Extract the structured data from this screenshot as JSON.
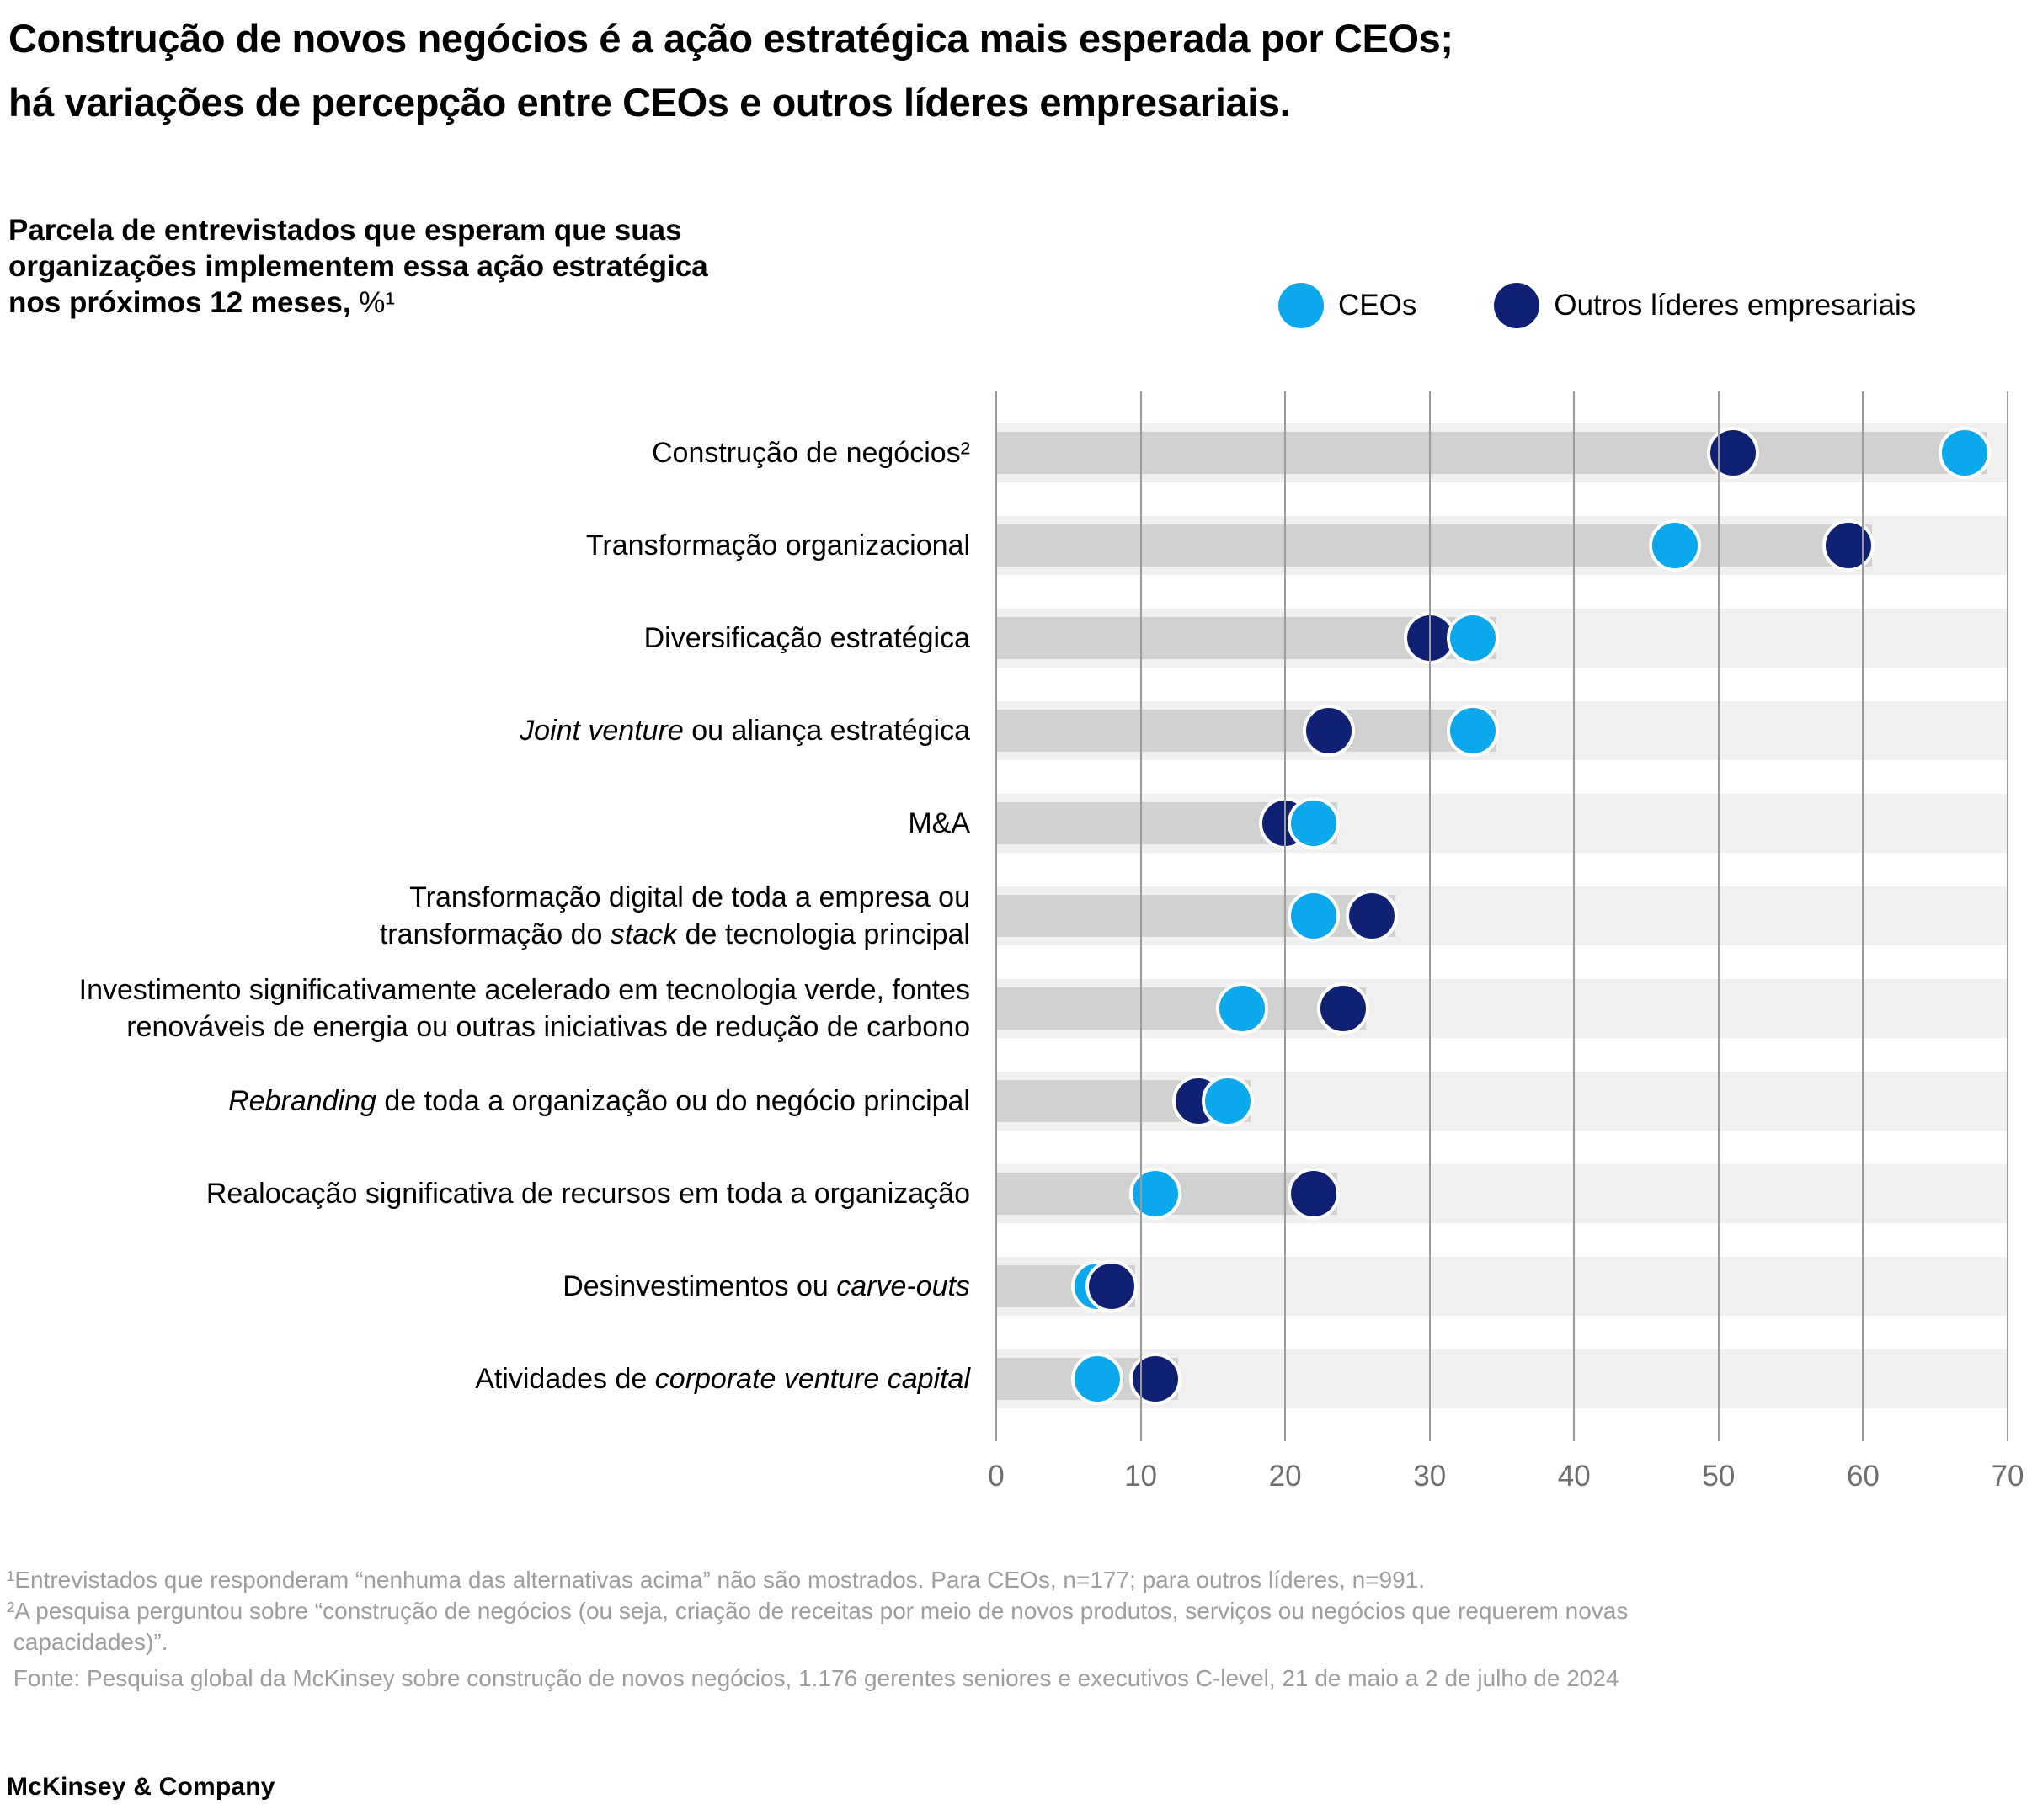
{
  "title": {
    "lines": [
      "Construção de novos negócios é a ação estratégica mais esperada por CEOs;",
      "há variações de percepção entre CEOs e outros líderes empresariais."
    ]
  },
  "subtitle": {
    "lines_rich": [
      [
        {
          "t": "Parcela de entrevistados que esperam que suas",
          "b": true
        }
      ],
      [
        {
          "t": "organizações implementem essa ação estratégica",
          "b": true
        }
      ],
      [
        {
          "t": "nos próximos 12 meses,",
          "b": true
        },
        {
          "t": " %¹"
        }
      ]
    ]
  },
  "legend": {
    "items": [
      {
        "label": "CEOs",
        "color": "#0BA8EC"
      },
      {
        "label": "Outros líderes empresariais",
        "color": "#102174"
      }
    ]
  },
  "chart_data": {
    "type": "scatter",
    "subtype": "horizontal-dot-plot",
    "title": "Parcela de entrevistados que esperam que suas organizações implementem essa ação estratégica nos próximos 12 meses, %",
    "xlabel": "",
    "ylabel": "",
    "xlim": [
      0,
      70
    ],
    "x_ticks": [
      0,
      10,
      20,
      30,
      40,
      50,
      60,
      70
    ],
    "grid": true,
    "legend_position": "top-right",
    "categories": [
      "Construção de negócios²",
      "Transformação organizacional",
      "Diversificação estratégica",
      "Joint venture ou aliança estratégica",
      "M&A",
      "Transformação digital de toda a empresa ou transformação do stack de tecnologia principal",
      "Investimento significativamente acelerado em tecnologia verde, fontes renováveis de energia ou outras iniciativas de redução de carbono",
      "Rebranding de toda a organização ou do negócio principal",
      "Realocação significativa de recursos em toda a organização",
      "Desinvestimentos ou carve-outs",
      "Atividades de corporate venture capital"
    ],
    "categories_rich": [
      [
        {
          "t": "Construção de negócios²"
        }
      ],
      [
        {
          "t": "Transformação organizacional"
        }
      ],
      [
        {
          "t": "Diversificação estratégica"
        }
      ],
      [
        {
          "t": "Joint venture",
          "i": true
        },
        {
          "t": " ou aliança estratégica"
        }
      ],
      [
        {
          "t": "M&A"
        }
      ],
      [
        {
          "t": "Transformação digital de toda a empresa ou"
        },
        {
          "br": true
        },
        {
          "t": "transformação do "
        },
        {
          "t": "stack",
          "i": true
        },
        {
          "t": " de tecnologia principal"
        }
      ],
      [
        {
          "t": "Investimento significativamente acelerado em tecnologia verde, fontes"
        },
        {
          "br": true
        },
        {
          "t": "renováveis de energia ou outras iniciativas de redução de carbono"
        }
      ],
      [
        {
          "t": "Rebranding",
          "i": true
        },
        {
          "t": " de toda a organização ou do negócio principal"
        }
      ],
      [
        {
          "t": "Realocação significativa de recursos em toda a organização"
        }
      ],
      [
        {
          "t": "Desinvestimentos ou "
        },
        {
          "t": "carve-outs",
          "i": true
        }
      ],
      [
        {
          "t": "Atividades de "
        },
        {
          "t": "corporate venture capital",
          "i": true
        }
      ]
    ],
    "series": [
      {
        "name": "CEOs",
        "color": "#0BA8EC",
        "values": [
          67,
          47,
          33,
          33,
          22,
          22,
          17,
          16,
          11,
          7,
          7
        ]
      },
      {
        "name": "Outros líderes empresariais",
        "color": "#102174",
        "values": [
          51,
          59,
          30,
          23,
          20,
          26,
          24,
          14,
          22,
          8,
          11
        ]
      }
    ]
  },
  "footnotes": [
    "¹Entrevistados que responderam “nenhuma das alternativas acima” não são mostrados. Para CEOs, n=177; para outros líderes, n=991.",
    "²A pesquisa perguntou sobre “construção de negócios (ou seja, criação de receitas por meio de novos produtos, serviços ou negócios que requerem novas",
    " capacidades)”.",
    " Fonte: Pesquisa global da McKinsey sobre construção de novos negócios, 1.176 gerentes seniores e executivos C-level, 21 de maio a 2 de julho de 2024"
  ],
  "logo": "McKinsey & Company",
  "colors": {
    "ceo_dot": "#0BA8EC",
    "other_dot": "#102174",
    "bar_background": "#f0f0f0",
    "bar_inner": "#d1d1d1",
    "grid_line": "#9b9b9b",
    "tick_label": "#6e6e6e",
    "footnote": "#9d9d9d"
  }
}
